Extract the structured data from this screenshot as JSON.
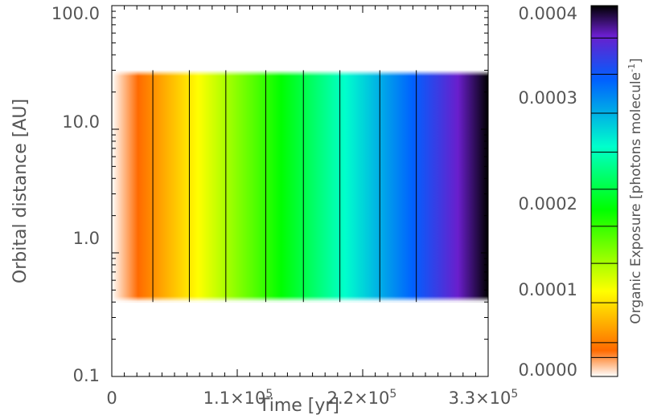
{
  "chart_data": {
    "type": "heatmap",
    "title": "",
    "xlabel": "Time [yr]",
    "ylabel": "Orbital distance [AU]",
    "xlim": [
      0,
      330000
    ],
    "ylim": [
      0.1,
      100
    ],
    "y_scale": "log",
    "x_ticks": [
      {
        "value": 0,
        "mantissa": "0",
        "exp": ""
      },
      {
        "value": 110000,
        "mantissa": "1.1×10",
        "exp": "5"
      },
      {
        "value": 220000,
        "mantissa": "2.2×10",
        "exp": "5"
      },
      {
        "value": 330000,
        "mantissa": "3.3×10",
        "exp": "5"
      }
    ],
    "y_ticks": [
      {
        "value": 0.1,
        "label": "0.1"
      },
      {
        "value": 1,
        "label": "1.0"
      },
      {
        "value": 10,
        "label": "10.0"
      },
      {
        "value": 100,
        "label": "100.0"
      }
    ],
    "filled_region": {
      "x_range": [
        0,
        330000
      ],
      "y_range": [
        0.4,
        30
      ]
    },
    "contour_x": [
      36000,
      68000,
      100000,
      135000,
      168000,
      200000,
      235000,
      267000
    ],
    "colorbar": {
      "label_main": "Organic Exposure [photons molecule",
      "label_exp": "-1",
      "label_close": "]",
      "range": [
        0,
        0.0004
      ],
      "ticks": [
        {
          "value": 0,
          "label": "0.0000"
        },
        {
          "value": 0.0001,
          "label": "0.0001"
        },
        {
          "value": 0.0002,
          "label": "0.0002"
        },
        {
          "value": 0.0003,
          "label": "0.0003"
        },
        {
          "value": 0.0004,
          "label": "0.0004"
        }
      ],
      "contour_levels": [
        2.05e-05,
        3.65e-05,
        7.95e-05,
        0.000122,
        0.000162,
        0.000202,
        0.000242,
        0.000284,
        0.000326,
        0.000365
      ],
      "colors": [
        "#ffffff",
        "#ff6a00",
        "#ffff00",
        "#00ff00",
        "#00ffcc",
        "#0060ff",
        "#6a1ecc",
        "#000000"
      ],
      "color_positions": [
        0,
        0.07,
        0.23,
        0.45,
        0.62,
        0.8,
        0.92,
        1
      ]
    }
  }
}
